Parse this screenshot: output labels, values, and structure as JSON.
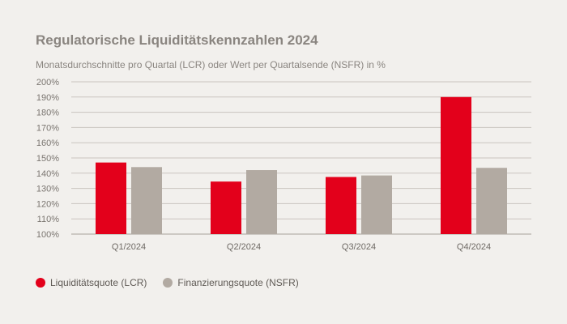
{
  "colors": {
    "lcr": "#e3001b",
    "nsfr": "#b2aaa2",
    "grid": "#c9c4bf",
    "background": "#f2f0ed"
  },
  "chart_data": {
    "type": "bar",
    "title": "Regulatorische Liquiditätskennzahlen 2024",
    "subtitle": "Monatsdurchschnitte pro Quartal (LCR) oder Wert per Quartalsende (NSFR) in %",
    "categories": [
      "Q1/2024",
      "Q2/2024",
      "Q3/2024",
      "Q4/2024"
    ],
    "series": [
      {
        "name": "Liquiditätsquote (LCR)",
        "values": [
          147,
          134.5,
          137.5,
          190
        ]
      },
      {
        "name": "Finanzierungsquote (NSFR)",
        "values": [
          144,
          142,
          138.5,
          143.5
        ]
      }
    ],
    "ylim": [
      100,
      200
    ],
    "yticks": [
      100,
      110,
      120,
      130,
      140,
      150,
      160,
      170,
      180,
      190,
      200
    ],
    "ytick_labels": [
      "100%",
      "110%",
      "120%",
      "130%",
      "140%",
      "150%",
      "160%",
      "170%",
      "180%",
      "190%",
      "200%"
    ],
    "grid": true,
    "legend_position": "bottom-left"
  }
}
